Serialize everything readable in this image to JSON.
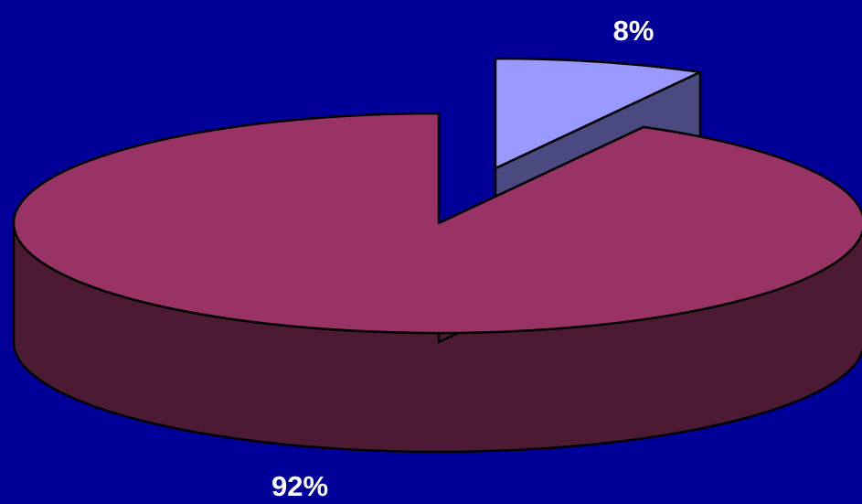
{
  "chart_data": {
    "type": "pie",
    "style": "3d-exploded",
    "slices": [
      {
        "value": 8,
        "label": "8%",
        "top_color": "#9999ff",
        "side_color": "#4a4a80",
        "exploded": true
      },
      {
        "value": 92,
        "label": "92%",
        "top_color": "#993366",
        "side_color": "#4d1a33",
        "exploded": false
      }
    ],
    "legend": "none",
    "background": "#000099"
  }
}
